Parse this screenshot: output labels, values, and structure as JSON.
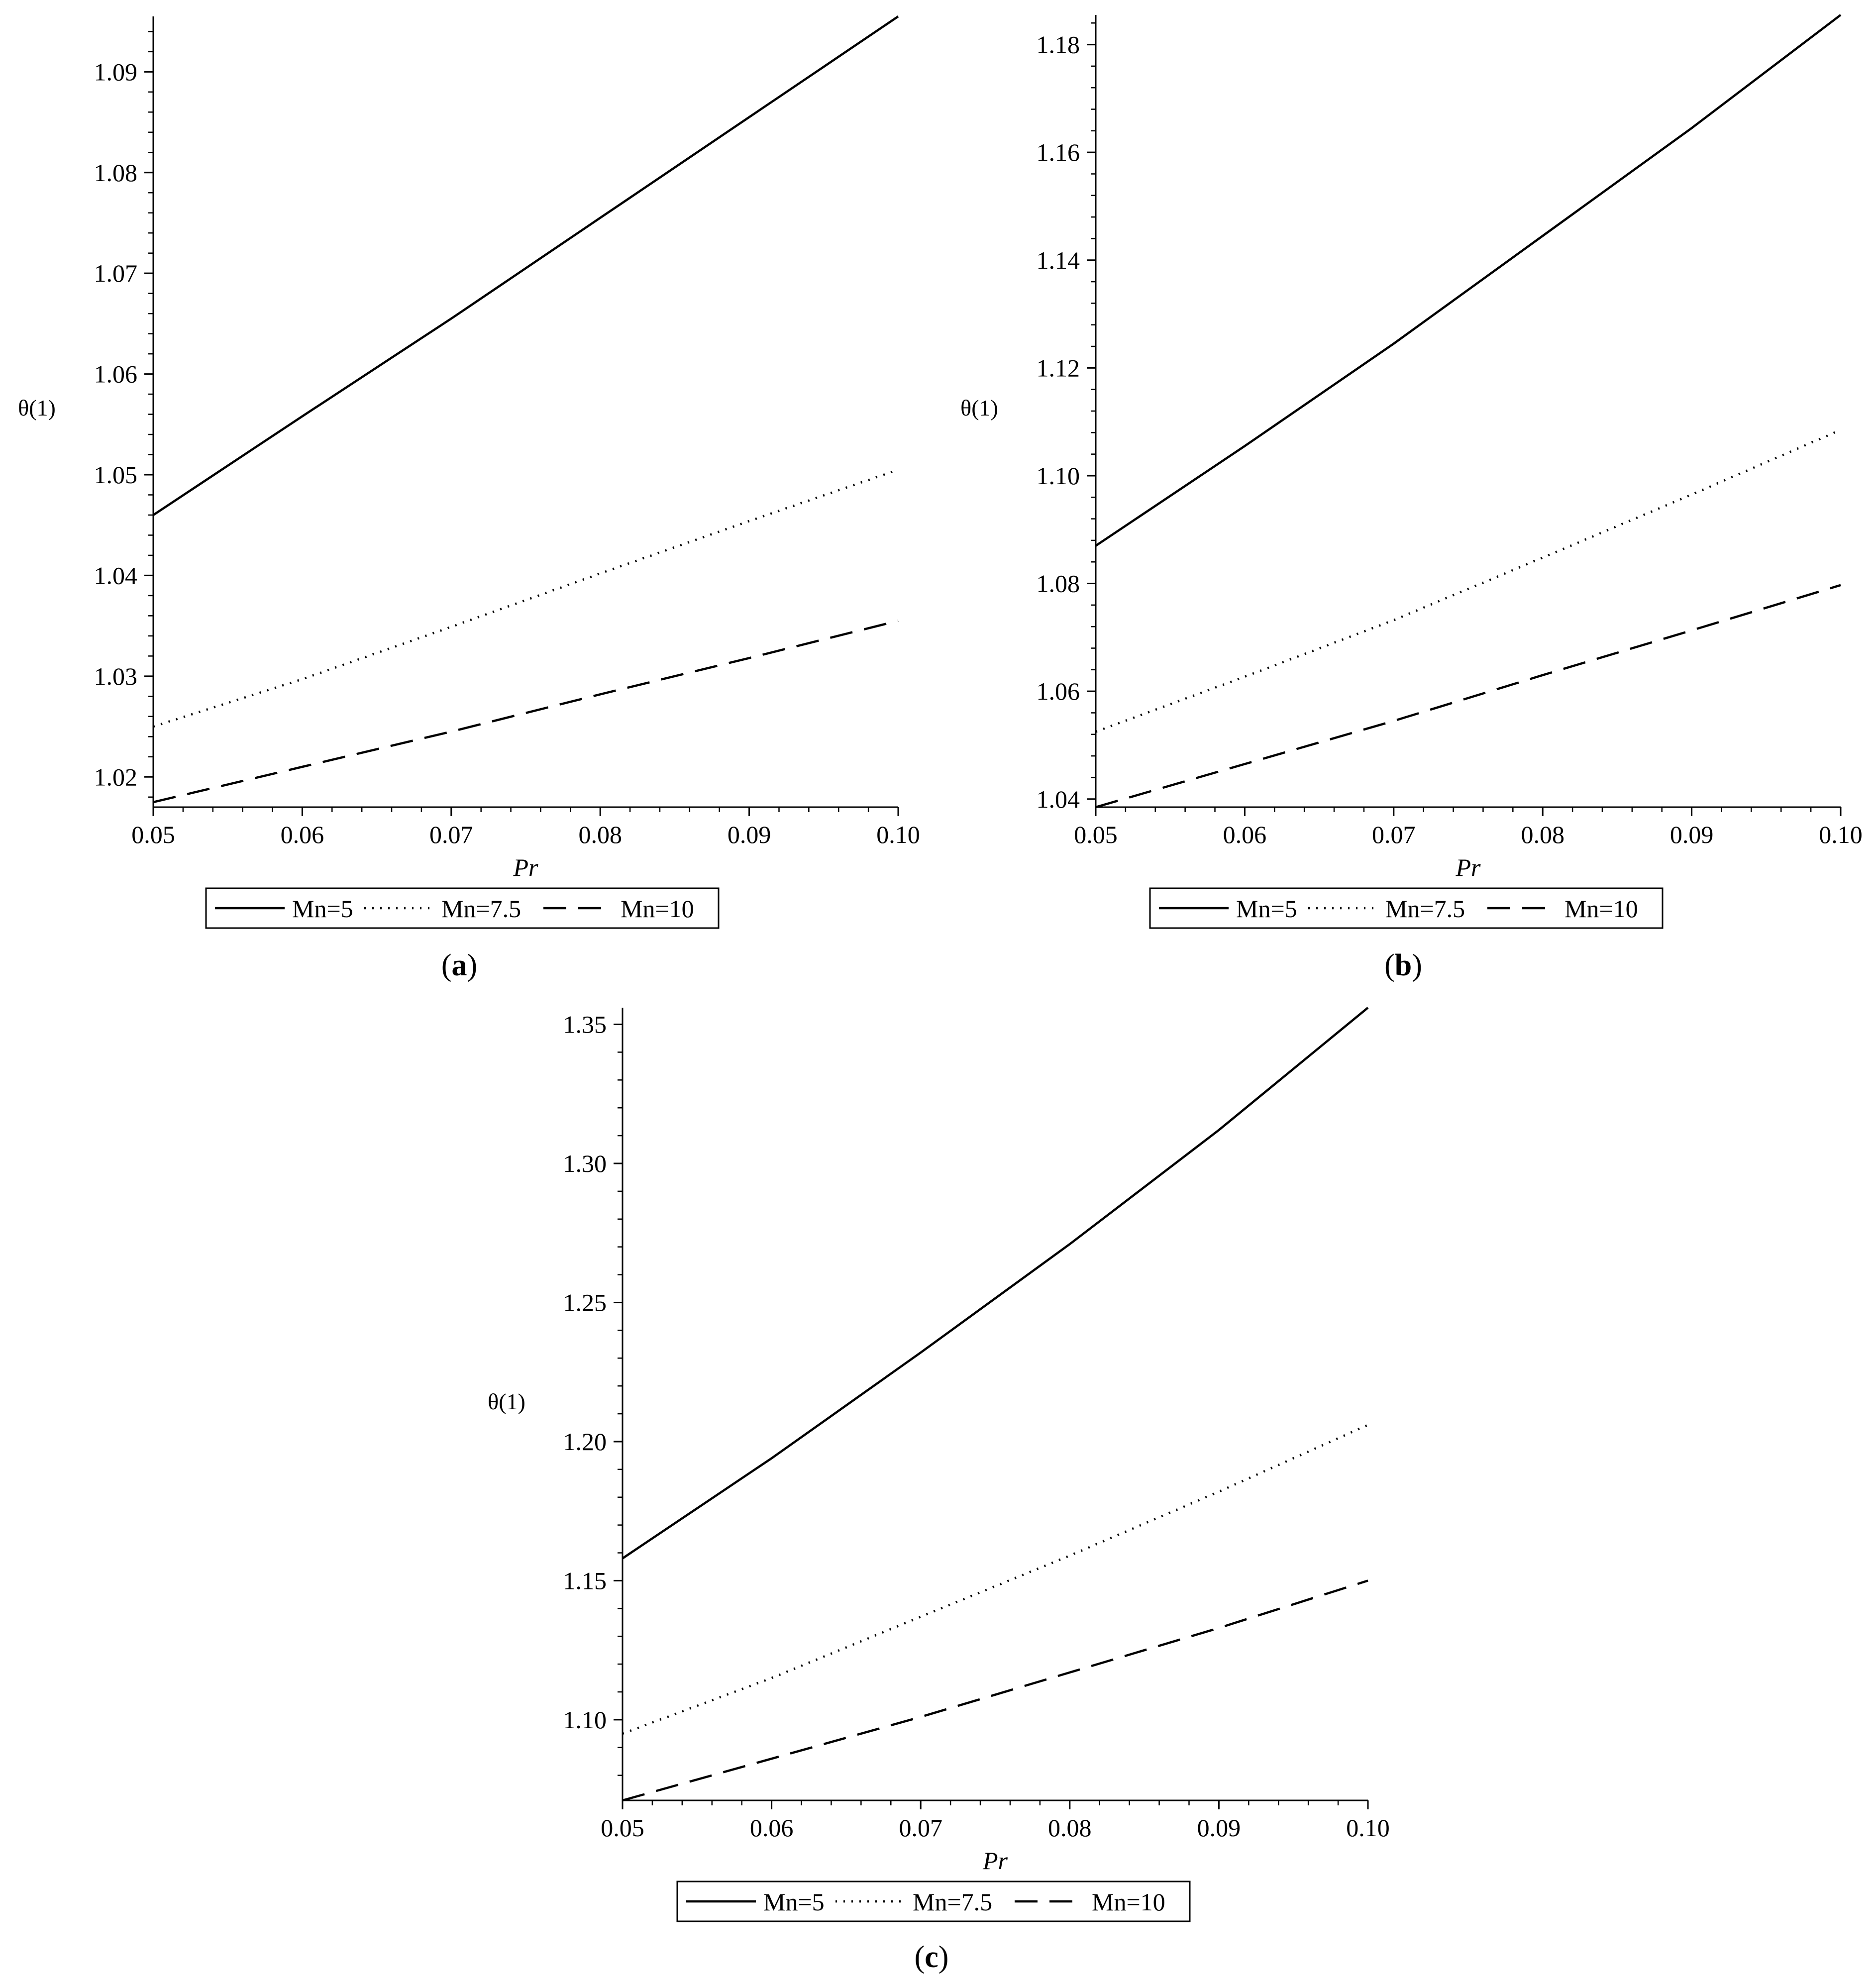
{
  "chart_data": [
    {
      "type": "line",
      "panel_label": "a",
      "xlabel": "Pr",
      "ylabel": "θ(1)",
      "xlim": [
        0.05,
        0.1
      ],
      "ylim": [
        1.017,
        1.0955
      ],
      "xticks": [
        0.05,
        0.06,
        0.07,
        0.08,
        0.09,
        0.1
      ],
      "xtick_labels": [
        "0.05",
        "0.06",
        "0.07",
        "0.08",
        "0.09",
        "0.10"
      ],
      "yticks": [
        1.02,
        1.03,
        1.04,
        1.05,
        1.06,
        1.07,
        1.08,
        1.09
      ],
      "ytick_labels": [
        "1.02",
        "1.03",
        "1.04",
        "1.05",
        "1.06",
        "1.07",
        "1.08",
        "1.09"
      ],
      "grid": false,
      "legend_position": "bottom",
      "series": [
        {
          "name": "Mn=5",
          "style": "solid",
          "x": [
            0.05,
            0.06,
            0.07,
            0.08,
            0.09,
            0.1
          ],
          "y": [
            1.046,
            1.0558,
            1.0655,
            1.0755,
            1.0855,
            1.0955
          ]
        },
        {
          "name": "Mn=7.5",
          "style": "dotted",
          "x": [
            0.05,
            0.06,
            0.07,
            0.08,
            0.09,
            0.1
          ],
          "y": [
            1.025,
            1.0297,
            1.0349,
            1.0402,
            1.0454,
            1.0505
          ]
        },
        {
          "name": "Mn=10",
          "style": "dashed",
          "x": [
            0.05,
            0.06,
            0.07,
            0.08,
            0.09,
            0.1
          ],
          "y": [
            1.0175,
            1.021,
            1.0245,
            1.0282,
            1.0318,
            1.0355
          ]
        }
      ]
    },
    {
      "type": "line",
      "panel_label": "b",
      "xlabel": "Pr",
      "ylabel": "θ(1)",
      "xlim": [
        0.05,
        0.1
      ],
      "ylim": [
        1.0385,
        1.1855
      ],
      "xticks": [
        0.05,
        0.06,
        0.07,
        0.08,
        0.09,
        0.1
      ],
      "xtick_labels": [
        "0.05",
        "0.06",
        "0.07",
        "0.08",
        "0.09",
        "0.10"
      ],
      "yticks": [
        1.04,
        1.06,
        1.08,
        1.1,
        1.12,
        1.14,
        1.16,
        1.18
      ],
      "ytick_labels": [
        "1.04",
        "1.06",
        "1.08",
        "1.10",
        "1.12",
        "1.14",
        "1.16",
        "1.18"
      ],
      "grid": false,
      "legend_position": "bottom",
      "series": [
        {
          "name": "Mn=5",
          "style": "solid",
          "x": [
            0.05,
            0.06,
            0.07,
            0.08,
            0.09,
            0.1
          ],
          "y": [
            1.087,
            1.1055,
            1.1245,
            1.1445,
            1.1645,
            1.1855
          ]
        },
        {
          "name": "Mn=7.5",
          "style": "dotted",
          "x": [
            0.05,
            0.06,
            0.07,
            0.08,
            0.09,
            0.1
          ],
          "y": [
            1.0525,
            1.0627,
            1.0732,
            1.0848,
            1.0965,
            1.1085
          ]
        },
        {
          "name": "Mn=10",
          "style": "dashed",
          "x": [
            0.05,
            0.06,
            0.07,
            0.08,
            0.09,
            0.1
          ],
          "y": [
            1.0385,
            1.0465,
            1.0545,
            1.063,
            1.0713,
            1.0797
          ]
        }
      ]
    },
    {
      "type": "line",
      "panel_label": "c",
      "xlabel": "Pr",
      "ylabel": "θ(1)",
      "xlim": [
        0.05,
        0.1
      ],
      "ylim": [
        1.071,
        1.356
      ],
      "xticks": [
        0.05,
        0.06,
        0.07,
        0.08,
        0.09,
        0.1
      ],
      "xtick_labels": [
        "0.05",
        "0.06",
        "0.07",
        "0.08",
        "0.09",
        "0.10"
      ],
      "yticks": [
        1.1,
        1.15,
        1.2,
        1.25,
        1.3,
        1.35
      ],
      "ytick_labels": [
        "1.10",
        "1.15",
        "1.20",
        "1.25",
        "1.30",
        "1.35"
      ],
      "grid": false,
      "legend_position": "bottom",
      "series": [
        {
          "name": "Mn=5",
          "style": "solid",
          "x": [
            0.05,
            0.06,
            0.07,
            0.08,
            0.09,
            0.1
          ],
          "y": [
            1.158,
            1.194,
            1.232,
            1.271,
            1.312,
            1.356
          ]
        },
        {
          "name": "Mn=7.5",
          "style": "dotted",
          "x": [
            0.05,
            0.06,
            0.07,
            0.08,
            0.09,
            0.1
          ],
          "y": [
            1.095,
            1.115,
            1.137,
            1.159,
            1.182,
            1.206
          ]
        },
        {
          "name": "Mn=10",
          "style": "dashed",
          "x": [
            0.05,
            0.06,
            0.07,
            0.08,
            0.09,
            0.1
          ],
          "y": [
            1.071,
            1.086,
            1.101,
            1.117,
            1.133,
            1.15
          ]
        }
      ]
    }
  ]
}
